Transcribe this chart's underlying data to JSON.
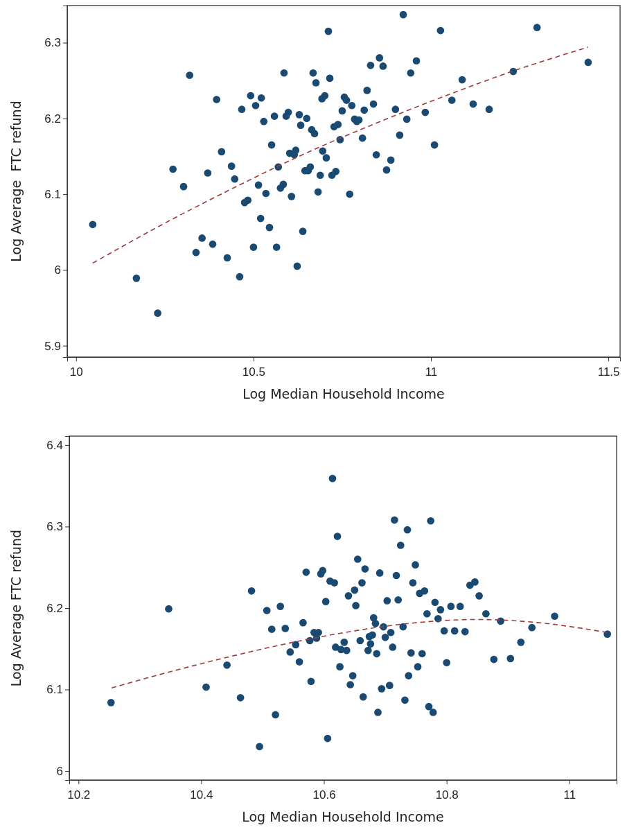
{
  "chart_data": [
    {
      "type": "scatter",
      "xlabel": "Log Median Household Income",
      "ylabel": "Log Average  FTC refund",
      "xlim": [
        9.975,
        11.533
      ],
      "ylim": [
        5.885,
        6.349
      ],
      "xticks": [
        10,
        10.5,
        11,
        11.5
      ],
      "yticks": [
        5.9,
        6,
        6.1,
        6.2,
        6.3
      ],
      "grid": false,
      "marker": "circle",
      "series": [
        {
          "color": "#1a4a72",
          "x": [
            10.047,
            10.17,
            10.23,
            10.273,
            10.303,
            10.32,
            10.338,
            10.355,
            10.371,
            10.385,
            10.396,
            10.41,
            10.426,
            10.438,
            10.447,
            10.461,
            10.467,
            10.475,
            10.484,
            10.492,
            10.5,
            10.506,
            10.514,
            10.52,
            10.522,
            10.529,
            10.535,
            10.545,
            10.551,
            10.559,
            10.565,
            10.57,
            10.576,
            10.584,
            10.586,
            10.592,
            10.598,
            10.602,
            10.607,
            10.615,
            10.619,
            10.623,
            10.629,
            10.633,
            10.639,
            10.645,
            10.65,
            10.654,
            10.66,
            10.664,
            10.668,
            10.672,
            10.676,
            10.682,
            10.688,
            10.693,
            10.695,
            10.701,
            10.705,
            10.711,
            10.715,
            10.721,
            10.727,
            10.732,
            10.738,
            10.744,
            10.75,
            10.756,
            10.762,
            10.771,
            10.777,
            10.785,
            10.791,
            10.797,
            10.807,
            10.812,
            10.82,
            10.83,
            10.838,
            10.846,
            10.855,
            10.865,
            10.875,
            10.887,
            10.9,
            10.912,
            10.922,
            10.932,
            10.943,
            10.959,
            10.984,
            11.01,
            11.027,
            11.059,
            11.088,
            11.119,
            11.164,
            11.232,
            11.299,
            11.443
          ],
          "values": [
            6.06,
            5.989,
            5.943,
            6.133,
            6.11,
            6.257,
            6.023,
            6.042,
            6.128,
            6.034,
            6.225,
            6.156,
            6.016,
            6.137,
            6.12,
            5.991,
            6.212,
            6.089,
            6.092,
            6.23,
            6.03,
            6.217,
            6.112,
            6.068,
            6.227,
            6.196,
            6.101,
            6.056,
            6.165,
            6.203,
            6.03,
            6.136,
            6.108,
            6.113,
            6.26,
            6.203,
            6.208,
            6.154,
            6.097,
            6.152,
            6.158,
            6.005,
            6.205,
            6.191,
            6.051,
            6.131,
            6.2,
            6.131,
            6.136,
            6.185,
            6.26,
            6.18,
            6.247,
            6.103,
            6.125,
            6.226,
            6.157,
            6.23,
            6.148,
            6.315,
            6.253,
            6.125,
            6.189,
            6.13,
            6.192,
            6.172,
            6.21,
            6.228,
            6.224,
            6.1,
            6.217,
            6.199,
            6.196,
            6.198,
            6.174,
            6.211,
            6.237,
            6.27,
            6.219,
            6.152,
            6.28,
            6.269,
            6.132,
            6.145,
            6.212,
            6.178,
            6.337,
            6.199,
            6.26,
            6.276,
            6.208,
            6.165,
            6.316,
            6.224,
            6.251,
            6.219,
            6.212,
            6.262,
            6.32,
            6.274
          ]
        },
        {
          "type": "line",
          "color": "#9e3a3a",
          "line_style": "dashed",
          "marker": "none",
          "x": [
            10.047,
            10.247,
            10.447,
            10.647,
            10.847,
            11.047,
            11.247,
            11.443
          ],
          "values": [
            6.009,
            6.061,
            6.109,
            6.154,
            6.194,
            6.231,
            6.265,
            6.294
          ]
        }
      ]
    },
    {
      "type": "scatter",
      "xlabel": "Log Median Household Income",
      "ylabel": "Log Average FTC refund",
      "xlim": [
        10.185,
        11.077
      ],
      "ylim": [
        5.989,
        6.411
      ],
      "xticks": [
        10.2,
        10.4,
        10.6,
        10.8,
        11
      ],
      "yticks": [
        6,
        6.1,
        6.2,
        6.3,
        6.4
      ],
      "grid": false,
      "marker": "circle",
      "series": [
        {
          "color": "#1a4a72",
          "x": [
            10.253,
            10.347,
            10.408,
            10.442,
            10.464,
            10.482,
            10.495,
            10.507,
            10.515,
            10.521,
            10.529,
            10.537,
            10.545,
            10.554,
            10.56,
            10.566,
            10.571,
            10.577,
            10.579,
            10.584,
            10.591,
            10.588,
            10.595,
            10.598,
            10.603,
            10.606,
            10.61,
            10.614,
            10.617,
            10.619,
            10.622,
            10.626,
            10.628,
            10.633,
            10.637,
            10.64,
            10.643,
            10.647,
            10.65,
            10.652,
            10.655,
            10.659,
            10.662,
            10.664,
            10.667,
            10.672,
            10.674,
            10.676,
            10.679,
            10.681,
            10.684,
            10.686,
            10.688,
            10.691,
            10.694,
            10.697,
            10.7,
            10.703,
            10.707,
            10.709,
            10.712,
            10.715,
            10.718,
            10.721,
            10.725,
            10.729,
            10.732,
            10.736,
            10.738,
            10.742,
            10.745,
            10.749,
            10.753,
            10.756,
            10.76,
            10.764,
            10.768,
            10.771,
            10.774,
            10.778,
            10.781,
            10.786,
            10.79,
            10.796,
            10.8,
            10.807,
            10.813,
            10.822,
            10.83,
            10.838,
            10.846,
            10.853,
            10.864,
            10.877,
            10.888,
            10.904,
            10.921,
            10.939,
            10.976,
            11.062
          ],
          "values": [
            6.084,
            6.199,
            6.103,
            6.13,
            6.09,
            6.221,
            6.03,
            6.197,
            6.174,
            6.069,
            6.202,
            6.175,
            6.146,
            6.155,
            6.134,
            6.182,
            6.244,
            6.16,
            6.11,
            6.17,
            6.17,
            6.163,
            6.242,
            6.246,
            6.208,
            6.04,
            6.233,
            6.359,
            6.231,
            6.152,
            6.288,
            6.128,
            6.149,
            6.158,
            6.148,
            6.215,
            6.106,
            6.117,
            6.222,
            6.203,
            6.26,
            6.16,
            6.231,
            6.091,
            6.248,
            6.148,
            6.165,
            6.156,
            6.167,
            6.188,
            6.181,
            6.144,
            6.072,
            6.243,
            6.101,
            6.177,
            6.164,
            6.209,
            6.105,
            6.17,
            6.152,
            6.308,
            6.24,
            6.21,
            6.277,
            6.177,
            6.087,
            6.296,
            6.117,
            6.145,
            6.231,
            6.253,
            6.128,
            6.218,
            6.144,
            6.221,
            6.193,
            6.079,
            6.307,
            6.072,
            6.207,
            6.187,
            6.198,
            6.172,
            6.133,
            6.202,
            6.172,
            6.202,
            6.171,
            6.228,
            6.232,
            6.215,
            6.193,
            6.137,
            6.184,
            6.138,
            6.158,
            6.176,
            6.19,
            6.168
          ]
        },
        {
          "type": "line",
          "color": "#9e3a3a",
          "line_style": "dashed",
          "marker": "none",
          "x": [
            10.254,
            10.35,
            10.45,
            10.55,
            10.65,
            10.75,
            10.85,
            10.95,
            11.062
          ],
          "values": [
            6.102,
            6.122,
            6.141,
            6.158,
            6.172,
            6.182,
            6.186,
            6.182,
            6.17
          ]
        }
      ]
    }
  ]
}
